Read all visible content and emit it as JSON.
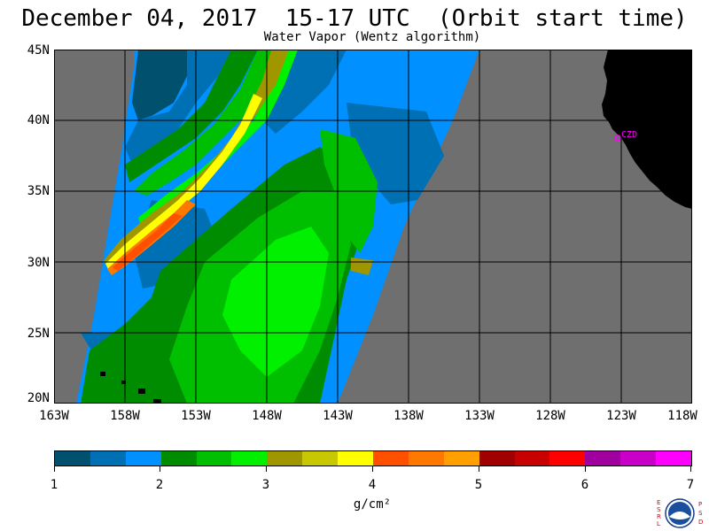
{
  "header": {
    "title": "December 04, 2017  15-17 UTC  (Orbit start time)",
    "subtitle": "Water Vapor (Wentz algorithm)"
  },
  "map": {
    "lat_labels": [
      "45N",
      "40N",
      "35N",
      "30N",
      "25N",
      "20N"
    ],
    "lon_labels": [
      "163W",
      "158W",
      "153W",
      "148W",
      "143W",
      "138W",
      "133W",
      "128W",
      "123W",
      "118W"
    ],
    "station_label": "CZD",
    "colors": {
      "no_data": "#6f6f6f",
      "land": "#000000",
      "station": "#ff00ff",
      "grid": "#000000"
    }
  },
  "colorbar": {
    "ticks": [
      "1",
      "2",
      "3",
      "4",
      "5",
      "6",
      "7"
    ],
    "units": "g/cm²",
    "colors": [
      "#00506e",
      "#0070b4",
      "#0090ff",
      "#008c00",
      "#00be00",
      "#00f000",
      "#a09600",
      "#c8c800",
      "#ffff00",
      "#ff5000",
      "#ff7800",
      "#ff9f00",
      "#a00000",
      "#c80000",
      "#ff0000",
      "#a0009e",
      "#c800c8",
      "#ff00ff"
    ]
  },
  "logo": {
    "left_letters": "ESRL",
    "right_letters": "PSD",
    "center": "NOAA"
  }
}
